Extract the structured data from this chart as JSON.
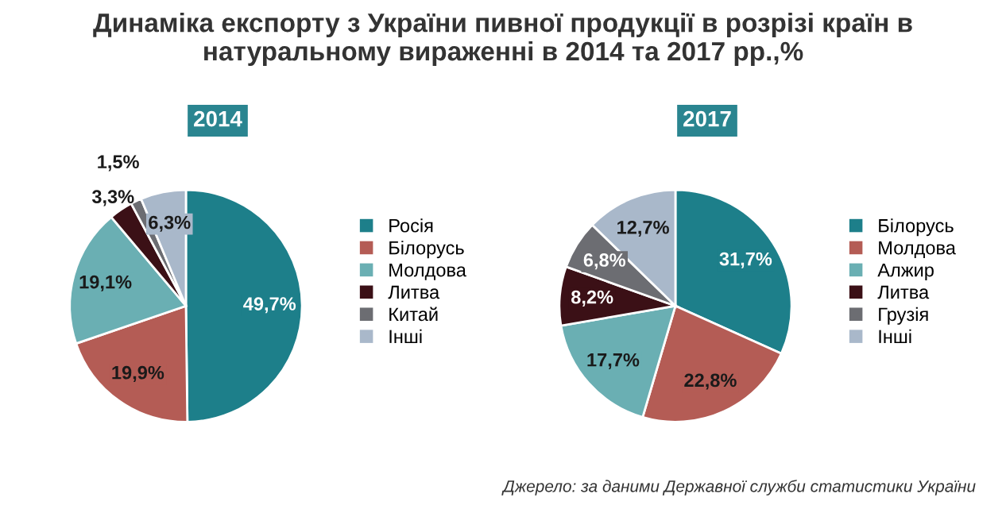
{
  "chart_data": [
    {
      "type": "pie",
      "title": "2014",
      "annotations": [
        "Динаміка експорту з України пивної продукції в розрізі країн в натуральному вираженні в 2014 та 2017 рр.,%"
      ],
      "categories": [
        "Росія",
        "Білорусь",
        "Молдова",
        "Литва",
        "Китай",
        "Інші"
      ],
      "values": [
        49.7,
        19.9,
        19.1,
        3.3,
        1.5,
        6.3
      ],
      "colors": [
        "#1d7f8a",
        "#b45c55",
        "#6aafb3",
        "#3b1016",
        "#6c6d72",
        "#a9b8ca"
      ],
      "value_labels": [
        "49,7%",
        "19,9%",
        "19,1%",
        "3,3%",
        "1,5%",
        "6,3%"
      ],
      "legend": "right"
    },
    {
      "type": "pie",
      "title": "2017",
      "annotations": [
        "Джерело: за даними Державної служби статистики України"
      ],
      "categories": [
        "Білорусь",
        "Молдова",
        "Алжир",
        "Литва",
        "Грузія",
        "Інші"
      ],
      "values": [
        31.7,
        22.8,
        17.7,
        8.2,
        6.8,
        12.7
      ],
      "colors": [
        "#1d7f8a",
        "#b45c55",
        "#6aafb3",
        "#3b1016",
        "#6c6d72",
        "#a9b8ca"
      ],
      "value_labels": [
        "31,7%",
        "22,8%",
        "17,7%",
        "8,2%",
        "6,8%",
        "12,7%"
      ],
      "legend": "right"
    }
  ]
}
